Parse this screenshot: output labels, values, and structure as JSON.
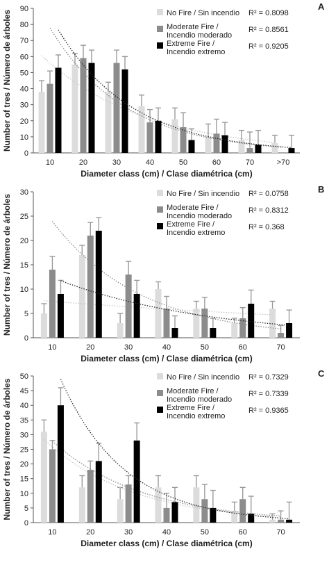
{
  "colors": {
    "no_fire": "#dcdcdc",
    "moderate": "#8c8c8c",
    "extreme": "#000000",
    "error_bar": "#9a9a9a",
    "trend_no_fire": "#c8c8c8",
    "trend_moderate": "#8c8c8c",
    "trend_extreme": "#2a2a2a"
  },
  "chart_data": [
    {
      "panel": "A",
      "type": "bar",
      "xlabel": "Diameter class (cm) / Clase diamétrica (cm)",
      "ylabel": "Number of tres / Número de árboles",
      "ylim": [
        0,
        90
      ],
      "yticks": [
        0,
        10,
        20,
        30,
        40,
        50,
        60,
        70,
        80,
        90
      ],
      "categories": [
        "10",
        "20",
        "30",
        "40",
        "50",
        "60",
        "70",
        ">70"
      ],
      "legend_placement": "top-right",
      "series": [
        {
          "name": "No Fire / Sin incendio",
          "r2": "R² = 0.8098",
          "values": [
            38,
            55,
            38,
            29,
            21,
            10,
            8,
            6
          ],
          "errors": [
            7,
            7,
            6,
            7,
            7,
            8,
            6,
            5
          ]
        },
        {
          "name": "Moderate Fire / Incendio moderado",
          "r2": "R² = 0.8561",
          "values": [
            43,
            59,
            56,
            19,
            16,
            12,
            3,
            0
          ],
          "errors": [
            8,
            8,
            8,
            8,
            9,
            9,
            10,
            0
          ]
        },
        {
          "name": "Extreme Fire / Incendio extremo",
          "r2": "R² = 0.9205",
          "values": [
            53,
            56,
            52,
            20,
            8,
            11,
            5,
            3
          ],
          "errors": [
            8,
            8,
            8,
            8,
            7,
            8,
            9,
            8
          ]
        }
      ]
    },
    {
      "panel": "B",
      "type": "bar",
      "xlabel": "Diameter class (cm) / Clase diamétrica (cm)",
      "ylabel": "Number of tres / Número de árboles",
      "ylim": [
        0,
        30
      ],
      "yticks": [
        0,
        5,
        10,
        15,
        20,
        25,
        30
      ],
      "categories": [
        "10",
        "20",
        "30",
        "40",
        "50",
        "60",
        "70"
      ],
      "legend_placement": "top-right",
      "series": [
        {
          "name": "No Fire / Sin incendio",
          "r2": "R² = 0.0758",
          "values": [
            5,
            17,
            3,
            10,
            6,
            3,
            6
          ],
          "errors": [
            2,
            2,
            2,
            1.5,
            1.5,
            1,
            1.5
          ]
        },
        {
          "name": "Moderate Fire / Incendio moderado",
          "r2": "R² = 0.8312",
          "values": [
            14,
            21,
            13,
            6,
            6,
            4,
            1
          ],
          "errors": [
            2.7,
            2.7,
            2.7,
            2.5,
            2.3,
            2.2,
            1.5
          ]
        },
        {
          "name": "Extreme Fire / Incendio extremo",
          "r2": "R² = 0.368",
          "values": [
            9,
            22,
            9,
            2,
            2,
            7,
            3
          ],
          "errors": [
            2.8,
            2.7,
            2.8,
            2.5,
            2,
            2.8,
            2.7
          ]
        }
      ]
    },
    {
      "panel": "C",
      "type": "bar",
      "xlabel": "Diameter class (cm) / Clase diamétrica (cm)",
      "ylabel": "Number of tres / Número de árboles",
      "ylim": [
        0,
        50
      ],
      "yticks": [
        0,
        5,
        10,
        15,
        20,
        25,
        30,
        35,
        40,
        45,
        50
      ],
      "categories": [
        "10",
        "20",
        "30",
        "40",
        "50",
        "60",
        "70"
      ],
      "legend_placement": "top-right",
      "series": [
        {
          "name": "No Fire / Sin incendio",
          "r2": "R² = 0.7329",
          "values": [
            31,
            12,
            8,
            12,
            12,
            4,
            1
          ],
          "errors": [
            4,
            4,
            4,
            4,
            4,
            3,
            2
          ]
        },
        {
          "name": "Moderate Fire / Incendio moderado",
          "r2": "R² = 0.7339",
          "values": [
            25,
            18,
            13,
            5,
            8,
            8,
            1
          ],
          "errors": [
            3,
            3,
            3,
            5,
            5,
            4,
            3
          ]
        },
        {
          "name": "Extreme Fire / Incendio extremo",
          "r2": "R² = 0.9365",
          "values": [
            40,
            21,
            28,
            7,
            5,
            3,
            1
          ],
          "errors": [
            6,
            6,
            6,
            5,
            6,
            6,
            6
          ]
        }
      ]
    }
  ]
}
